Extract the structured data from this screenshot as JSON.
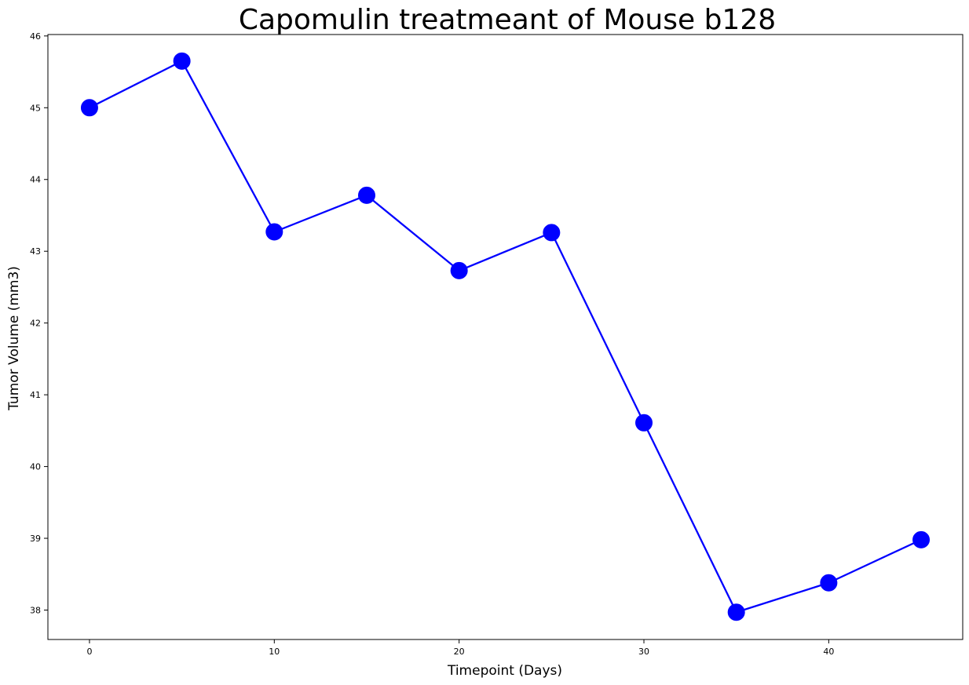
{
  "chart_data": {
    "type": "line",
    "title": "Capomulin treatmeant of Mouse b128",
    "xlabel": "Timepoint (Days)",
    "ylabel": "Tumor Volume (mm3)",
    "xlim": [
      -2.25,
      47.25
    ],
    "ylim": [
      37.59,
      46.02
    ],
    "x_ticks": [
      0,
      10,
      20,
      30,
      40
    ],
    "y_ticks": [
      38,
      39,
      40,
      41,
      42,
      43,
      44,
      45,
      46
    ],
    "grid": false,
    "series": [
      {
        "x": [
          0,
          5,
          10,
          15,
          20,
          25,
          30,
          35,
          40,
          45
        ],
        "values": [
          45.0,
          45.65,
          43.27,
          43.78,
          42.73,
          43.26,
          40.61,
          37.97,
          38.38,
          38.98
        ],
        "color": "#0000ff",
        "marker": "circle"
      }
    ]
  }
}
